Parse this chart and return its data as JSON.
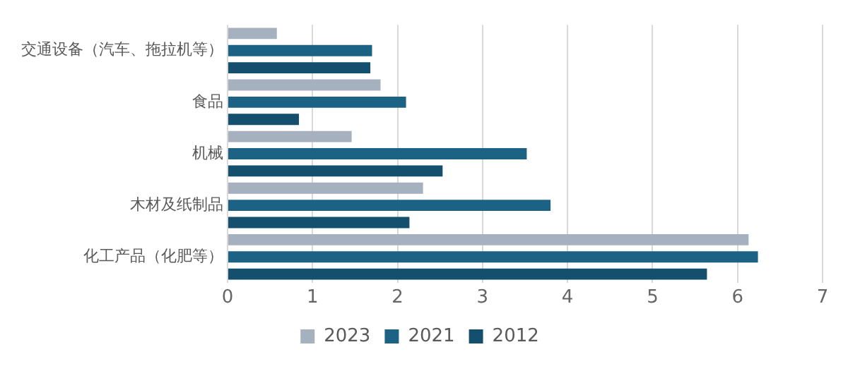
{
  "chart_data": {
    "type": "bar",
    "orientation": "horizontal",
    "categories": [
      "交通设备（汽车、拖拉机等）",
      "食品",
      "机械",
      "木材及纸制品",
      "化工产品（化肥等）"
    ],
    "series": [
      {
        "name": "2023",
        "color": "#a5b1be",
        "values": [
          0.58,
          1.8,
          1.46,
          2.3,
          6.13
        ]
      },
      {
        "name": "2021",
        "color": "#1c6285",
        "values": [
          1.7,
          2.1,
          3.52,
          3.8,
          6.24
        ]
      },
      {
        "name": "2012",
        "color": "#14506e",
        "values": [
          1.68,
          0.84,
          2.53,
          2.14,
          5.64
        ]
      }
    ],
    "xlim": [
      0,
      7
    ],
    "xticks": [
      0,
      1,
      2,
      3,
      4,
      5,
      6,
      7
    ],
    "grid": "x",
    "legend": "bottom"
  }
}
